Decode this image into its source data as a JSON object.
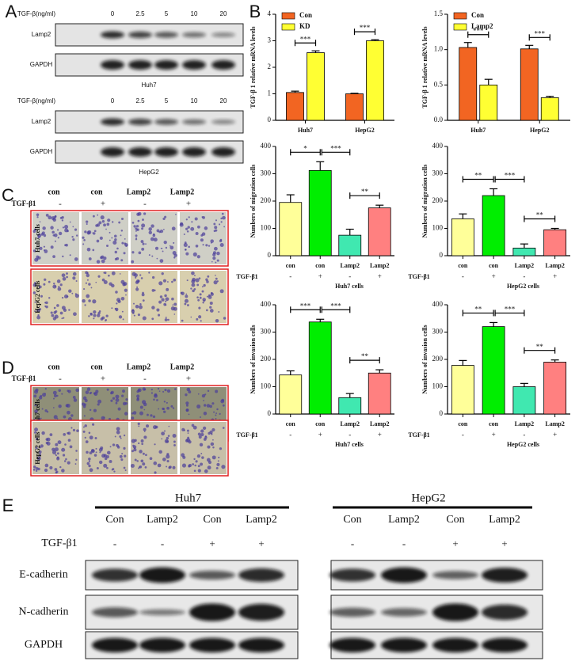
{
  "panel_labels": [
    "A",
    "B",
    "C",
    "D",
    "E"
  ],
  "panel_a": {
    "blots": [
      {
        "treatment_label": "TGF-β(ng/ml)",
        "doses": [
          "0",
          "2.5",
          "5",
          "10",
          "20"
        ],
        "rows": [
          "Lamp2",
          "GAPDH"
        ],
        "cell_line": "Huh7"
      },
      {
        "treatment_label": "TGF-β(ng/ml)",
        "doses": [
          "0",
          "2.5",
          "5",
          "10",
          "20"
        ],
        "rows": [
          "Lamp2",
          "GAPDH"
        ],
        "cell_line": "HepG2"
      }
    ]
  },
  "chart_data": [
    {
      "type": "bar",
      "ylabel": "TGF-β 1 relative mRNA levels",
      "categories": [
        "Huh7",
        "HepG2"
      ],
      "series": [
        {
          "name": "Con",
          "color": "#f26522",
          "values": [
            1.05,
            1.0
          ],
          "errors": [
            0.05,
            0.02
          ]
        },
        {
          "name": "KD",
          "color": "#ffff33",
          "values": [
            2.55,
            3.0
          ],
          "errors": [
            0.07,
            0.04
          ]
        }
      ],
      "ylim": [
        0,
        4
      ],
      "yticks": [
        0,
        1,
        2,
        3,
        4
      ],
      "annotations": [
        "***",
        "***"
      ],
      "legend": "upper-left"
    },
    {
      "type": "bar",
      "ylabel": "TGF-β 1 relative mRNA levels",
      "categories": [
        "Huh7",
        "HepG2"
      ],
      "series": [
        {
          "name": "Con",
          "color": "#f26522",
          "values": [
            1.03,
            1.01
          ],
          "errors": [
            0.07,
            0.05
          ]
        },
        {
          "name": "Lamp2",
          "color": "#ffff33",
          "values": [
            0.5,
            0.32
          ],
          "errors": [
            0.08,
            0.02
          ]
        }
      ],
      "ylim": [
        0,
        1.5
      ],
      "yticks": [
        {
          "value": 0,
          "label": "0.0"
        },
        {
          "value": 0.5,
          "label": "0.5"
        },
        {
          "value": 1,
          "label": "1.0"
        },
        {
          "value": 1.5,
          "label": "1.5"
        }
      ],
      "annotations": [
        "***",
        "***"
      ],
      "legend": "upper-left"
    },
    {
      "type": "bar",
      "ylabel": "Numbers of migration cells",
      "xlabel": "Huh7 cells",
      "categories": [
        "con",
        "con",
        "Lamp2",
        "Lamp2"
      ],
      "treatment_label": "TGF-β1",
      "treatment": [
        "-",
        "+",
        "-",
        "+"
      ],
      "values": [
        195,
        312,
        75,
        175
      ],
      "errors": [
        28,
        32,
        22,
        10
      ],
      "colors": [
        "#ffff99",
        "#00ee00",
        "#40e8b0",
        "#ff8080"
      ],
      "ylim": [
        0,
        400
      ],
      "yticks": [
        0,
        100,
        200,
        300,
        400
      ],
      "annotations": [
        "*",
        "***",
        "**"
      ]
    },
    {
      "type": "bar",
      "ylabel": "Numbers of migration cells",
      "xlabel": "HepG2 cells",
      "categories": [
        "con",
        "con",
        "Lamp2",
        "Lamp2"
      ],
      "treatment_label": "TGF-β1",
      "treatment": [
        "-",
        "+",
        "-",
        "+"
      ],
      "values": [
        135,
        220,
        28,
        95
      ],
      "errors": [
        18,
        25,
        15,
        5
      ],
      "colors": [
        "#ffff99",
        "#00ee00",
        "#40e8b0",
        "#ff8080"
      ],
      "ylim": [
        0,
        400
      ],
      "yticks": [
        0,
        100,
        200,
        300,
        400
      ],
      "annotations": [
        "**",
        "***",
        "**"
      ]
    },
    {
      "type": "bar",
      "ylabel": "Numbers of invasion cells",
      "xlabel": "Huh7 cells",
      "categories": [
        "con",
        "con",
        "Lamp2",
        "Lamp2"
      ],
      "treatment_label": "TGF-β1",
      "treatment": [
        "-",
        "+",
        "-",
        "+"
      ],
      "values": [
        143,
        337,
        60,
        150
      ],
      "errors": [
        15,
        10,
        15,
        12
      ],
      "colors": [
        "#ffff99",
        "#00ee00",
        "#40e8b0",
        "#ff8080"
      ],
      "ylim": [
        0,
        400
      ],
      "yticks": [
        0,
        100,
        200,
        300,
        400
      ],
      "annotations": [
        "***",
        "***",
        "**"
      ]
    },
    {
      "type": "bar",
      "ylabel": "Numbers of invasion cells",
      "xlabel": "HepG2 cells",
      "categories": [
        "con",
        "con",
        "Lamp2",
        "Lamp2"
      ],
      "treatment_label": "TGF-β1",
      "treatment": [
        "-",
        "+",
        "-",
        "+"
      ],
      "values": [
        178,
        320,
        100,
        190
      ],
      "errors": [
        18,
        15,
        12,
        8
      ],
      "colors": [
        "#ffff99",
        "#00ee00",
        "#40e8b0",
        "#ff8080"
      ],
      "ylim": [
        0,
        400
      ],
      "yticks": [
        0,
        100,
        200,
        300,
        400
      ],
      "annotations": [
        "**",
        "***",
        "**"
      ]
    }
  ],
  "panel_c": {
    "lanes": [
      "con",
      "con",
      "Lamp2",
      "Lamp2"
    ],
    "treatment_label": "TGF-β1",
    "treatment": [
      "-",
      "+",
      "-",
      "+"
    ],
    "rows": [
      "Huh7 cells",
      "HepG2 cells"
    ]
  },
  "panel_d": {
    "lanes": [
      "con",
      "con",
      "Lamp2",
      "Lamp2"
    ],
    "treatment_label": "TGF-β1",
    "treatment": [
      "-",
      "+",
      "-",
      "+"
    ],
    "rows": [
      "Huh7 cells",
      "HepG2 cells"
    ]
  },
  "panel_e": {
    "treatment_label": "TGF-β1",
    "rows": [
      "E-cadherin",
      "N-cadherin",
      "GAPDH"
    ],
    "groups": [
      {
        "cell_line": "Huh7",
        "lanes": [
          "Con",
          "Lamp2",
          "Con",
          "Lamp2"
        ],
        "treatment": [
          "-",
          "-",
          "+",
          "+"
        ]
      },
      {
        "cell_line": "HepG2",
        "lanes": [
          "Con",
          "Lamp2",
          "Con",
          "Lamp2"
        ],
        "treatment": [
          "-",
          "-",
          "+",
          "+"
        ]
      }
    ]
  }
}
